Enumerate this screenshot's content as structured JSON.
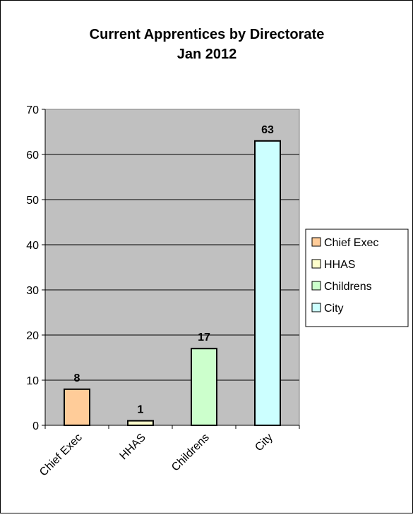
{
  "chart_data": {
    "type": "bar",
    "title_lines": [
      "Current Apprentices by Directorate",
      "Jan 2012"
    ],
    "categories": [
      "Chief Exec",
      "HHAS",
      "Childrens",
      "City"
    ],
    "values": [
      8,
      1,
      17,
      63
    ],
    "data_labels": [
      "8",
      "1",
      "17",
      "63"
    ],
    "colors": [
      "#FFCC99",
      "#FFFFCC",
      "#CCFFCC",
      "#CCFFFF"
    ],
    "plot_background": "#C0C0C0",
    "ylim": [
      0,
      70
    ],
    "yticks": [
      0,
      10,
      20,
      30,
      40,
      50,
      60,
      70
    ],
    "ytick_labels": [
      "0",
      "10",
      "20",
      "30",
      "40",
      "50",
      "60",
      "70"
    ],
    "grid": true,
    "legend": {
      "placement": "right",
      "entries": [
        "Chief Exec",
        "HHAS",
        "Childrens",
        "City"
      ]
    }
  }
}
